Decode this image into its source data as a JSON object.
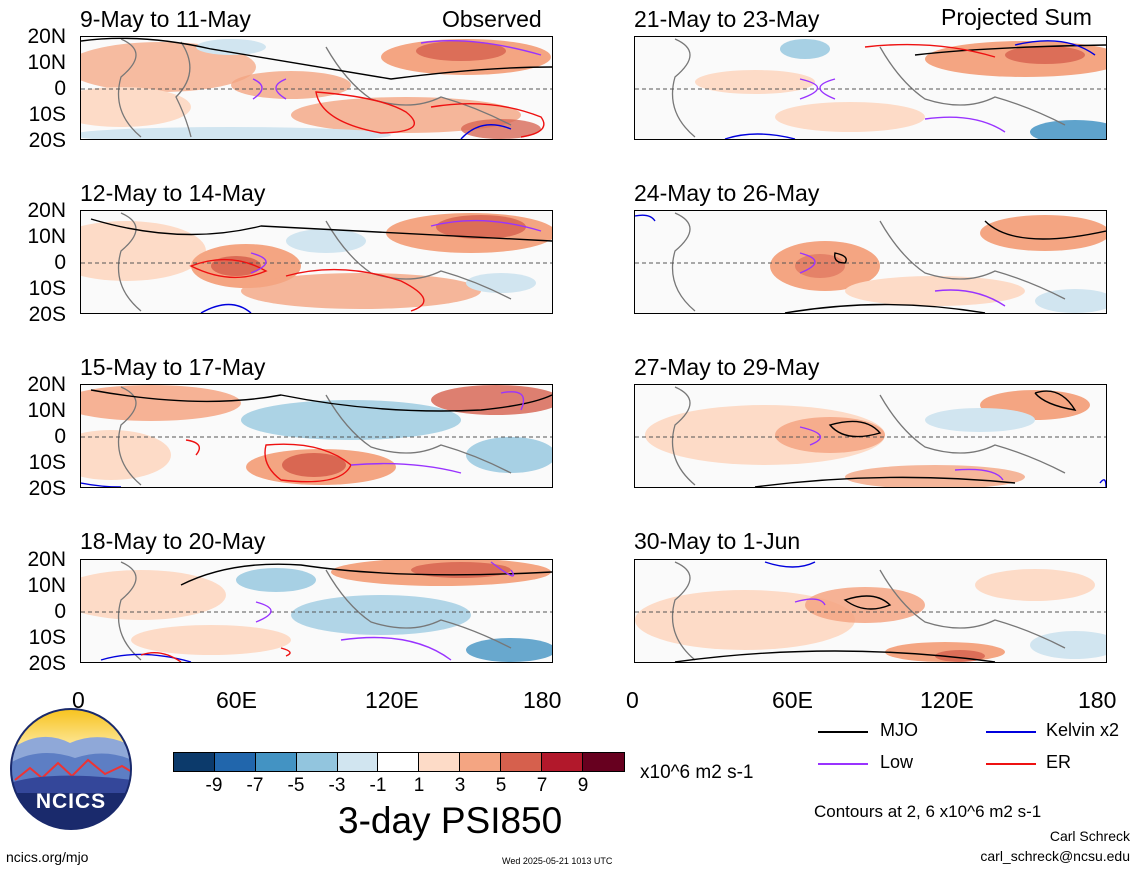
{
  "headers": {
    "left": "Observed",
    "right": "Projected Sum"
  },
  "lat_labels": [
    "20N",
    "10N",
    "0",
    "10S",
    "20S"
  ],
  "lon_labels": [
    "0",
    "60E",
    "120E",
    "180"
  ],
  "panels": [
    {
      "title": "9-May to 11-May"
    },
    {
      "title": "12-May to 14-May"
    },
    {
      "title": "15-May to 17-May"
    },
    {
      "title": "18-May to 20-May"
    },
    {
      "title": "21-May to 23-May"
    },
    {
      "title": "24-May to 26-May"
    },
    {
      "title": "27-May to 29-May"
    },
    {
      "title": "30-May to 1-Jun"
    }
  ],
  "colorbar": {
    "colors": [
      "#0c3a6b",
      "#2166ac",
      "#4393c3",
      "#92c5de",
      "#d1e5f0",
      "#ffffff",
      "#fddbc7",
      "#f4a582",
      "#d6604d",
      "#b2182b",
      "#67001f"
    ],
    "ticks": [
      "-9",
      "-7",
      "-5",
      "-3",
      "-1",
      "1",
      "3",
      "5",
      "7",
      "9"
    ],
    "units": "x10^6 m2 s-1",
    "title": "3-day PSI850"
  },
  "legend": {
    "items": [
      {
        "label": "MJO",
        "color": "#000000"
      },
      {
        "label": "Kelvin x2",
        "color": "#0000dd"
      },
      {
        "label": "Low",
        "color": "#9933ff"
      },
      {
        "label": "ER",
        "color": "#ee1111"
      }
    ],
    "contours_note": "Contours at 2, 6 x10^6 m2 s-1"
  },
  "credit": {
    "author": "Carl Schreck",
    "email": "carl_schreck@ncsu.edu"
  },
  "footer": {
    "url": "ncics.org/mjo",
    "timestamp": "Wed 2025-05-21 1013 UTC"
  },
  "logo": {
    "text": "NCICS"
  }
}
